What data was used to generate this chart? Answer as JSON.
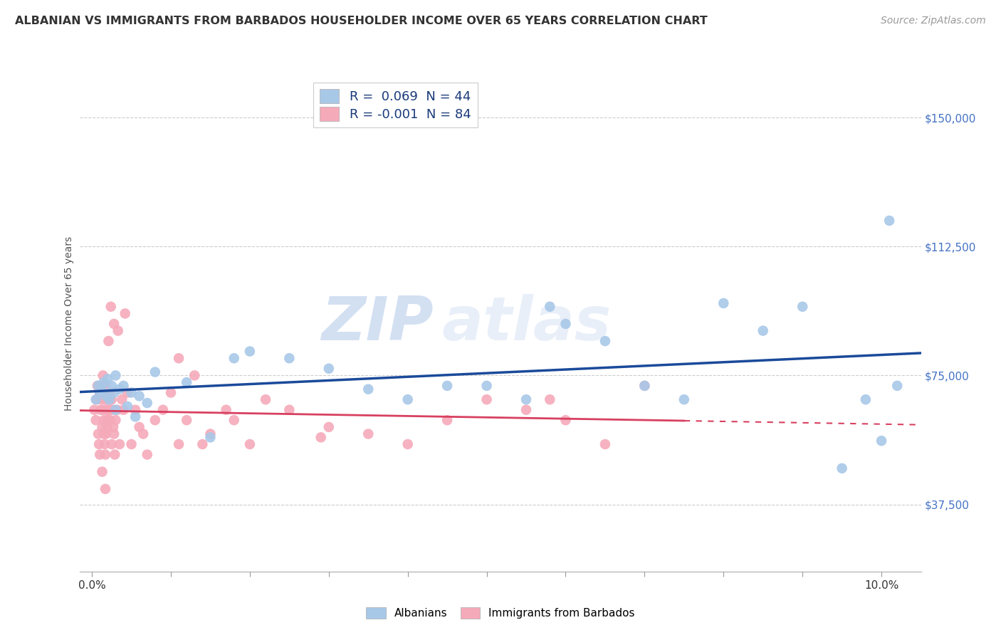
{
  "title": "ALBANIAN VS IMMIGRANTS FROM BARBADOS HOUSEHOLDER INCOME OVER 65 YEARS CORRELATION CHART",
  "source": "Source: ZipAtlas.com",
  "ylabel": "Householder Income Over 65 years",
  "ytick_labels": [
    "$37,500",
    "$75,000",
    "$112,500",
    "$150,000"
  ],
  "ytick_vals": [
    37500,
    75000,
    112500,
    150000
  ],
  "ylim": [
    18000,
    162000
  ],
  "xlim": [
    -0.15,
    10.5
  ],
  "albanian_R": "0.069",
  "albanian_N": "44",
  "barbados_R": "-0.001",
  "barbados_N": "84",
  "albanian_color": "#a8c8e8",
  "barbados_color": "#f5aaba",
  "albanian_line_color": "#1a4a9a",
  "barbados_line_color": "#d84060",
  "watermark_zip": "ZIP",
  "watermark_atlas": "atlas",
  "albanian_x": [
    0.05,
    0.08,
    0.1,
    0.12,
    0.15,
    0.18,
    0.2,
    0.22,
    0.25,
    0.28,
    0.3,
    0.35,
    0.4,
    0.5,
    0.6,
    0.8,
    1.2,
    1.5,
    1.8,
    2.0,
    2.5,
    3.0,
    3.5,
    4.0,
    4.5,
    5.0,
    5.5,
    5.8,
    6.0,
    6.5,
    7.0,
    7.5,
    8.0,
    8.5,
    9.0,
    9.5,
    9.8,
    10.0,
    10.1,
    10.2,
    0.3,
    0.45,
    0.55,
    0.7
  ],
  "albanian_y": [
    68000,
    72000,
    70000,
    71000,
    73000,
    69000,
    74000,
    68000,
    72000,
    70000,
    75000,
    71000,
    72000,
    70000,
    69000,
    76000,
    73000,
    57000,
    80000,
    82000,
    80000,
    77000,
    71000,
    68000,
    72000,
    72000,
    68000,
    95000,
    90000,
    85000,
    72000,
    68000,
    96000,
    88000,
    95000,
    48000,
    68000,
    56000,
    120000,
    72000,
    65000,
    66000,
    63000,
    67000
  ],
  "barbados_x": [
    0.03,
    0.05,
    0.06,
    0.07,
    0.08,
    0.09,
    0.1,
    0.1,
    0.11,
    0.12,
    0.13,
    0.13,
    0.14,
    0.14,
    0.15,
    0.15,
    0.16,
    0.16,
    0.17,
    0.17,
    0.18,
    0.18,
    0.18,
    0.19,
    0.19,
    0.2,
    0.2,
    0.2,
    0.21,
    0.21,
    0.22,
    0.22,
    0.23,
    0.23,
    0.24,
    0.25,
    0.25,
    0.26,
    0.27,
    0.28,
    0.29,
    0.3,
    0.32,
    0.35,
    0.38,
    0.4,
    0.45,
    0.5,
    0.55,
    0.6,
    0.65,
    0.7,
    0.8,
    0.9,
    1.0,
    1.1,
    1.2,
    1.4,
    1.5,
    1.7,
    1.8,
    2.0,
    2.2,
    2.5,
    3.0,
    3.5,
    4.0,
    4.5,
    5.0,
    5.5,
    6.0,
    6.5,
    7.0,
    0.13,
    0.17,
    0.21,
    0.24,
    0.28,
    0.33,
    0.42,
    1.1,
    1.3,
    5.8,
    2.9
  ],
  "barbados_y": [
    65000,
    62000,
    68000,
    72000,
    58000,
    55000,
    52000,
    70000,
    65000,
    68000,
    72000,
    60000,
    75000,
    65000,
    58000,
    62000,
    55000,
    70000,
    52000,
    68000,
    72000,
    58000,
    65000,
    60000,
    62000,
    70000,
    65000,
    68000,
    62000,
    70000,
    68000,
    65000,
    62000,
    70000,
    65000,
    68000,
    55000,
    65000,
    60000,
    58000,
    52000,
    62000,
    65000,
    55000,
    68000,
    65000,
    70000,
    55000,
    65000,
    60000,
    58000,
    52000,
    62000,
    65000,
    70000,
    55000,
    62000,
    55000,
    58000,
    65000,
    62000,
    55000,
    68000,
    65000,
    60000,
    58000,
    55000,
    62000,
    68000,
    65000,
    62000,
    55000,
    72000,
    47000,
    42000,
    85000,
    95000,
    90000,
    88000,
    93000,
    80000,
    75000,
    68000,
    57000
  ],
  "barbados_line_x_end": 7.5,
  "background_color": "#ffffff",
  "grid_color": "#cccccc",
  "title_fontsize": 11.5,
  "source_fontsize": 10,
  "legend_fontsize": 13,
  "tick_fontsize": 11
}
